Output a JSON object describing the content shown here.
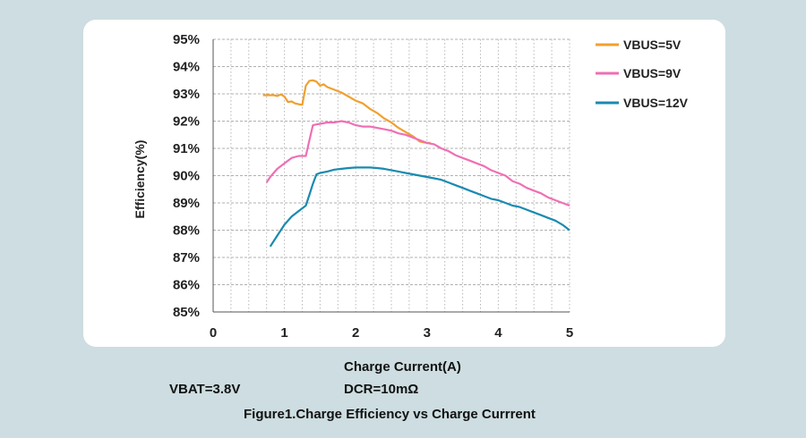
{
  "chart_data": {
    "type": "line",
    "title": "Figure1.Charge Efficiency vs Charge Currrent",
    "xlabel": "Charge Current(A)",
    "ylabel": "Efficiency(%)",
    "xlim": [
      0,
      5
    ],
    "ylim": [
      85,
      95
    ],
    "xticks": [
      "0",
      "1",
      "2",
      "3",
      "4",
      "5"
    ],
    "yticks": [
      "85%",
      "86%",
      "87%",
      "88%",
      "89%",
      "90%",
      "91%",
      "92%",
      "93%",
      "94%",
      "95%"
    ],
    "grid": true,
    "legend_position": "right",
    "series": [
      {
        "name": "VBUS=5V",
        "color": "#f0a030",
        "x": [
          0.7,
          0.85,
          0.9,
          0.95,
          1.0,
          1.05,
          1.1,
          1.15,
          1.2,
          1.25,
          1.3,
          1.35,
          1.4,
          1.45,
          1.5,
          1.55,
          1.6,
          1.7,
          1.8,
          1.9,
          2.0,
          2.1,
          2.2,
          2.3,
          2.4,
          2.5,
          2.6,
          2.7,
          2.8,
          2.9,
          3.0,
          3.05
        ],
        "y": [
          92.95,
          92.95,
          92.92,
          92.98,
          92.9,
          92.7,
          92.72,
          92.65,
          92.62,
          92.6,
          93.3,
          93.48,
          93.5,
          93.45,
          93.3,
          93.35,
          93.25,
          93.15,
          93.05,
          92.9,
          92.75,
          92.65,
          92.45,
          92.3,
          92.1,
          91.95,
          91.75,
          91.6,
          91.45,
          91.25,
          91.2,
          91.2
        ]
      },
      {
        "name": "VBUS=9V",
        "color": "#ef6fb4",
        "x": [
          0.75,
          0.8,
          0.9,
          1.0,
          1.1,
          1.2,
          1.3,
          1.35,
          1.4,
          1.45,
          1.5,
          1.6,
          1.7,
          1.8,
          1.9,
          2.0,
          2.1,
          2.2,
          2.3,
          2.4,
          2.5,
          2.6,
          2.7,
          2.8,
          2.9,
          3.0,
          3.1,
          3.2,
          3.3,
          3.4,
          3.5,
          3.6,
          3.7,
          3.8,
          3.9,
          4.0,
          4.1,
          4.2,
          4.3,
          4.4,
          4.5,
          4.6,
          4.7,
          4.8,
          4.9,
          5.0
        ],
        "y": [
          89.75,
          89.95,
          90.25,
          90.45,
          90.65,
          90.72,
          90.72,
          91.3,
          91.85,
          91.88,
          91.9,
          91.95,
          91.95,
          92.0,
          91.95,
          91.85,
          91.8,
          91.8,
          91.75,
          91.7,
          91.65,
          91.55,
          91.5,
          91.4,
          91.3,
          91.2,
          91.15,
          91.0,
          90.9,
          90.75,
          90.65,
          90.55,
          90.45,
          90.35,
          90.2,
          90.1,
          90.0,
          89.8,
          89.7,
          89.55,
          89.45,
          89.35,
          89.2,
          89.1,
          89.0,
          88.9
        ]
      },
      {
        "name": "VBUS=12V",
        "color": "#1a8ab0",
        "x": [
          0.8,
          0.9,
          1.0,
          1.1,
          1.2,
          1.3,
          1.35,
          1.4,
          1.45,
          1.5,
          1.6,
          1.7,
          1.8,
          1.9,
          2.0,
          2.1,
          2.2,
          2.3,
          2.4,
          2.5,
          2.6,
          2.7,
          2.8,
          2.9,
          3.0,
          3.1,
          3.2,
          3.3,
          3.4,
          3.5,
          3.6,
          3.7,
          3.8,
          3.9,
          4.0,
          4.1,
          4.2,
          4.3,
          4.4,
          4.5,
          4.6,
          4.7,
          4.8,
          4.9,
          5.0
        ],
        "y": [
          87.4,
          87.8,
          88.2,
          88.5,
          88.7,
          88.9,
          89.3,
          89.7,
          90.05,
          90.1,
          90.15,
          90.22,
          90.25,
          90.28,
          90.3,
          90.3,
          90.3,
          90.28,
          90.25,
          90.2,
          90.15,
          90.1,
          90.05,
          90.0,
          89.95,
          89.9,
          89.85,
          89.75,
          89.65,
          89.55,
          89.45,
          89.35,
          89.25,
          89.15,
          89.1,
          89.0,
          88.9,
          88.85,
          88.75,
          88.65,
          88.55,
          88.45,
          88.35,
          88.2,
          88.0
        ]
      }
    ]
  },
  "captions": {
    "vbat": "VBAT=3.8V",
    "dcr": "DCR=10mΩ"
  }
}
